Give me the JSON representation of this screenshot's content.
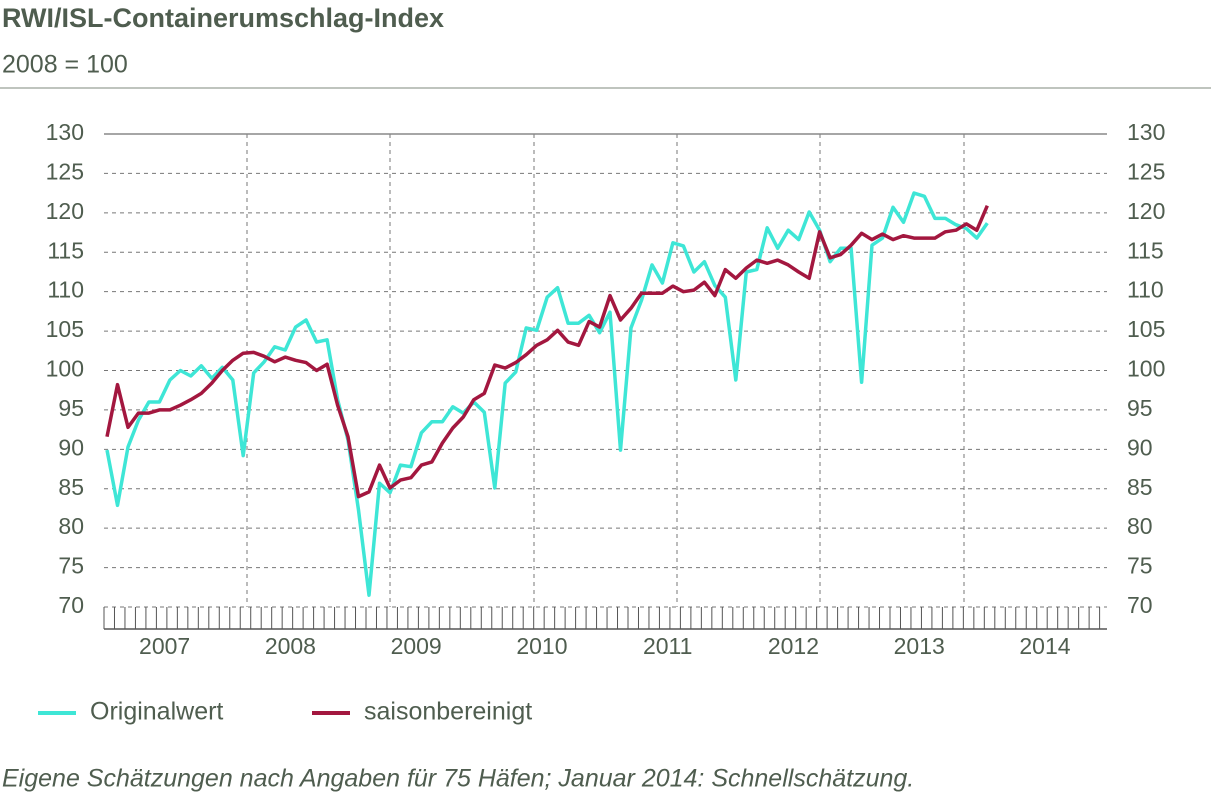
{
  "chart_data": {
    "type": "line",
    "title": "RWI/ISL-Containerumschlag-Index",
    "subtitle": "2008 = 100",
    "note": "Eigene Schätzungen nach Angaben für 75 Häfen; Januar 2014: Schnellschätzung.",
    "categories": [
      "2007",
      null,
      null,
      null,
      null,
      null,
      null,
      null,
      null,
      null,
      null,
      null,
      "2008",
      null,
      null,
      null,
      null,
      null,
      null,
      null,
      null,
      null,
      null,
      null,
      "2009",
      null,
      null,
      null,
      null,
      null,
      null,
      null,
      null,
      null,
      null,
      null,
      "2010",
      null,
      null,
      null,
      null,
      null,
      null,
      null,
      null,
      null,
      null,
      null,
      "2011",
      null,
      null,
      null,
      null,
      null,
      null,
      null,
      null,
      null,
      null,
      null,
      "2012",
      null,
      null,
      null,
      null,
      null,
      null,
      null,
      null,
      null,
      null,
      null,
      "2013",
      null,
      null,
      null,
      null,
      null,
      null,
      null,
      null,
      null,
      null,
      null,
      "2014"
    ],
    "series": [
      {
        "name": "Originalwert",
        "color": "#3ee6d6",
        "values": [
          89.9,
          82.9,
          90.3,
          93.7,
          96,
          96,
          98.8,
          100,
          99.3,
          100.6,
          99,
          100.4,
          98.8,
          89.2,
          99.7,
          101.1,
          103,
          102.6,
          105.5,
          106.4,
          103.6,
          103.9,
          96.3,
          91.2,
          82.3,
          71.5,
          85.7,
          84.5,
          88,
          87.8,
          92.1,
          93.5,
          93.5,
          95.4,
          94.6,
          96,
          94.7,
          85.1,
          98.4,
          99.8,
          105.4,
          105.1,
          109.3,
          110.5,
          106,
          106,
          107,
          104.8,
          107.4,
          89.9,
          105.4,
          108.9,
          113.4,
          111.1,
          116.2,
          115.8,
          112.5,
          113.8,
          110.8,
          109.3,
          98.8,
          112.5,
          112.8,
          118.1,
          115.5,
          117.8,
          116.6,
          120.1,
          117.8,
          113.8,
          115.5,
          115.5,
          98.5,
          115.9,
          116.8,
          120.7,
          118.8,
          122.5,
          122.1,
          119.3,
          119.3,
          118.5,
          118,
          116.8,
          118.7
        ]
      },
      {
        "name": "saisonbereinigt",
        "color": "#a3173f",
        "values": [
          91.6,
          98.2,
          92.8,
          94.6,
          94.6,
          95,
          95,
          95.6,
          96.3,
          97.1,
          98.4,
          100,
          101.3,
          102.2,
          102.3,
          101.8,
          101.1,
          101.7,
          101.3,
          101,
          100,
          100.8,
          95.6,
          91.6,
          84,
          84.6,
          88,
          85.1,
          86.1,
          86.4,
          88,
          88.4,
          90.8,
          92.7,
          94.1,
          96.3,
          97.1,
          100.7,
          100.3,
          101,
          102,
          103.2,
          103.9,
          105.1,
          103.6,
          103.2,
          106.2,
          105.5,
          109.5,
          106.4,
          107.9,
          109.8,
          109.8,
          109.8,
          110.7,
          110,
          110.2,
          111.2,
          109.5,
          112.8,
          111.7,
          113,
          114,
          113.6,
          114,
          113.4,
          112.5,
          111.7,
          117.6,
          114.3,
          114.7,
          115.9,
          117.4,
          116.6,
          117.3,
          116.6,
          117.1,
          116.8,
          116.8,
          116.8,
          117.6,
          117.8,
          118.6,
          117.8,
          120.9
        ]
      }
    ],
    "ylim": [
      70,
      130
    ],
    "yticks": [
      70,
      75,
      80,
      85,
      90,
      95,
      100,
      105,
      110,
      115,
      120,
      125,
      130
    ],
    "grid": true
  }
}
